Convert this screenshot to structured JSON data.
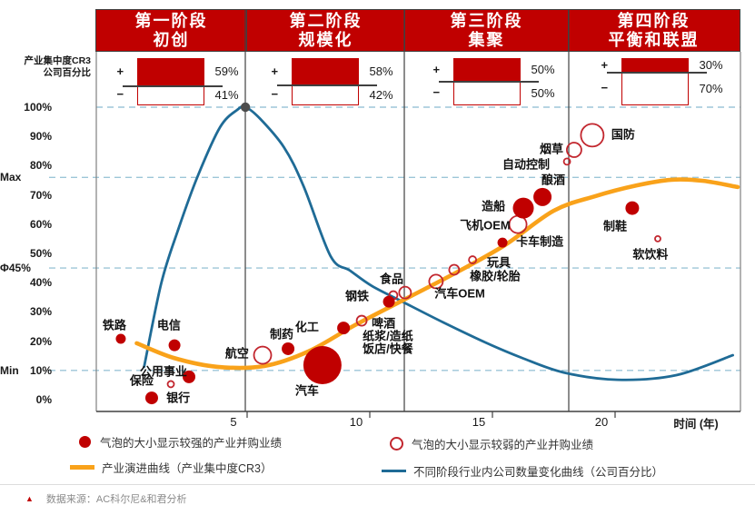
{
  "header": {
    "y_axis_title_line1": "产业集中度CR3",
    "y_axis_title_line2": "公司百分比",
    "plus_sign": "+",
    "minus_sign": "−",
    "phases": [
      {
        "stage": "第一阶段",
        "name": "初创",
        "plus_pct": 59,
        "minus_pct": 41,
        "plus_label": "59%",
        "minus_label": "41%"
      },
      {
        "stage": "第二阶段",
        "name": "规模化",
        "plus_pct": 58,
        "minus_pct": 42,
        "plus_label": "58%",
        "minus_label": "42%"
      },
      {
        "stage": "第三阶段",
        "name": "集聚",
        "plus_pct": 50,
        "minus_pct": 50,
        "plus_label": "50%",
        "minus_label": "50%"
      },
      {
        "stage": "第四阶段",
        "name": "平衡和联盟",
        "plus_pct": 30,
        "minus_pct": 70,
        "plus_label": "30%",
        "minus_label": "70%"
      }
    ]
  },
  "chart_data": {
    "type": "scatter",
    "x_axis": {
      "ticks": [
        5,
        10,
        15,
        20
      ],
      "title": "时间 (年)"
    },
    "y_axis": {
      "ticks": [
        "100%",
        "90%",
        "80%",
        "70%",
        "60%",
        "50%",
        "40%",
        "30%",
        "20%",
        "10%",
        "0%"
      ],
      "tick_pcts": [
        100,
        90,
        80,
        70,
        60,
        50,
        40,
        30,
        20,
        10,
        0
      ],
      "special_lines": [
        {
          "label": "Max",
          "pct": 76
        },
        {
          "label": "Φ45%",
          "pct": 45
        },
        {
          "label": "Min",
          "pct": 10
        }
      ]
    },
    "curves": [
      {
        "id": "company-count-curve",
        "name": "不同阶段行业内公司数量变化曲线（公司百分比）",
        "color": "#1F6B96",
        "width": 2.8,
        "points": [
          [
            0.8,
            11.2
          ],
          [
            1.5,
            39.8
          ],
          [
            2.2,
            58.4
          ],
          [
            3.0,
            76.7
          ],
          [
            3.9,
            93.2
          ],
          [
            4.6,
            99.1
          ],
          [
            4.93,
            100
          ],
          [
            5.5,
            96.3
          ],
          [
            6.5,
            86.3
          ],
          [
            7.3,
            73.0
          ],
          [
            8.4,
            49.1
          ],
          [
            9.2,
            44.1
          ],
          [
            10.1,
            38.8
          ],
          [
            11.4,
            33.2
          ],
          [
            13.0,
            26.4
          ],
          [
            14.7,
            19.6
          ],
          [
            16.2,
            14.3
          ],
          [
            17.9,
            9.3
          ],
          [
            20.1,
            6.8
          ],
          [
            22.5,
            8.4
          ],
          [
            24.8,
            15.2
          ]
        ]
      },
      {
        "id": "cr3-evolution-curve",
        "name": "产业演进曲线（产业集中度CR3）",
        "color": "#F9A21A",
        "width": 4.6,
        "points": [
          [
            0.5,
            19.3
          ],
          [
            2.0,
            14.3
          ],
          [
            3.8,
            11.2
          ],
          [
            5.7,
            11.5
          ],
          [
            7.5,
            16.5
          ],
          [
            9.4,
            25.5
          ],
          [
            11.4,
            34.2
          ],
          [
            13.4,
            42.9
          ],
          [
            15.5,
            52.8
          ],
          [
            17.5,
            64.6
          ],
          [
            19.2,
            69.6
          ],
          [
            20.9,
            73.3
          ],
          [
            22.3,
            75.2
          ],
          [
            23.6,
            74.8
          ],
          [
            25.0,
            72.7
          ]
        ]
      }
    ],
    "peak_dot": {
      "t": 4.93,
      "c": 100,
      "r": 5.2,
      "color": "#4D4D4D"
    },
    "bubbles": [
      {
        "label": "铁路",
        "t": -0.15,
        "c": 20.8,
        "r": 5.5,
        "filled": true,
        "lt": -0.41,
        "lc": 25.8
      },
      {
        "label": "电信",
        "t": 2.04,
        "c": 18.6,
        "r": 6.5,
        "filled": true,
        "lt": 1.81,
        "lc": 25.8
      },
      {
        "label": "公用事业",
        "t": 2.63,
        "c": 7.8,
        "r": 7,
        "filled": true,
        "lt": 1.59,
        "lc": 9.9
      },
      {
        "label": "保险",
        "t": 1.89,
        "c": 5.3,
        "r": 3.5,
        "filled": false,
        "lt": 0.7,
        "lc": 6.8
      },
      {
        "label": "银行",
        "t": 1.11,
        "c": 0.6,
        "r": 7,
        "filled": true,
        "lt": 2.19,
        "lc": 0.9
      },
      {
        "label": "航空",
        "t": 5.63,
        "c": 15.2,
        "r": 9.5,
        "filled": false,
        "lt": 4.59,
        "lc": 16.1
      },
      {
        "label": "制药",
        "t": 6.67,
        "c": 17.4,
        "r": 7,
        "filled": true,
        "lt": 6.41,
        "lc": 22.7
      },
      {
        "label": "化工",
        "t": 8.93,
        "c": 24.5,
        "r": 7,
        "filled": true,
        "lt": 7.44,
        "lc": 25.2
      },
      {
        "label": "汽车",
        "t": 8.07,
        "c": 11.8,
        "r": 21,
        "filled": true,
        "lt": 7.44,
        "lc": 3.4
      },
      {
        "label": "钢铁",
        "t": 10.78,
        "c": 33.5,
        "r": 6.5,
        "filled": true,
        "lt": 9.48,
        "lc": 35.7
      },
      {
        "label": "啤酒",
        "t": 9.67,
        "c": 27.0,
        "r": 5.5,
        "filled": false,
        "lt": 10.56,
        "lc": 26.4
      },
      {
        "label": "",
        "t": 10.96,
        "c": 35.7,
        "r": 4.5,
        "filled": false
      },
      {
        "label": "食品",
        "t": 11.44,
        "c": 36.6,
        "r": 6.5,
        "filled": false,
        "lt": 10.89,
        "lc": 41.6
      },
      {
        "label": "汽车OEM",
        "t": 12.7,
        "c": 40.4,
        "r": 7.5,
        "filled": false,
        "lt": 13.67,
        "lc": 36.6
      },
      {
        "label": "橡胶/轮胎",
        "t": 13.44,
        "c": 44.4,
        "r": 5.5,
        "filled": false,
        "lt": 15.11,
        "lc": 42.5
      },
      {
        "label": "玩具",
        "t": 14.19,
        "c": 47.8,
        "r": 4,
        "filled": false,
        "lt": 15.26,
        "lc": 47.2
      },
      {
        "label": "卡车制造",
        "t": 15.41,
        "c": 53.7,
        "r": 5.5,
        "filled": true,
        "lt": 16.93,
        "lc": 54.3
      },
      {
        "label": "飞机OEM",
        "t": 16.04,
        "c": 59.9,
        "r": 9.5,
        "filled": false,
        "lt": 14.7,
        "lc": 59.9
      },
      {
        "label": "造船",
        "t": 16.26,
        "c": 65.5,
        "r": 11.5,
        "filled": true,
        "lt": 15.04,
        "lc": 66.5
      },
      {
        "label": "酿酒",
        "t": 17.04,
        "c": 69.3,
        "r": 10,
        "filled": true,
        "lt": 17.48,
        "lc": 75.5
      },
      {
        "label": "自动控制",
        "t": 18.04,
        "c": 81.4,
        "r": 3.5,
        "filled": false,
        "lt": 16.37,
        "lc": 80.7
      },
      {
        "label": "烟草",
        "t": 18.33,
        "c": 85.4,
        "r": 8,
        "filled": false,
        "lt": 17.41,
        "lc": 86.0
      },
      {
        "label": "国防",
        "t": 19.07,
        "c": 90.4,
        "r": 12.5,
        "filled": false,
        "lt": 20.33,
        "lc": 91.0
      },
      {
        "label": "制鞋",
        "t": 20.7,
        "c": 65.5,
        "r": 7.5,
        "filled": true,
        "lt": 20.0,
        "lc": 59.6
      },
      {
        "label": "软饮料",
        "t": 21.74,
        "c": 55.0,
        "r": 3,
        "filled": false,
        "lt": 21.44,
        "lc": 50.0
      }
    ],
    "annotations": [
      {
        "text": "纸浆/造纸",
        "t": 10.74,
        "c": 22.0
      },
      {
        "text": "饭店/快餐",
        "t": 10.74,
        "c": 17.7
      }
    ]
  },
  "legend": {
    "items": [
      {
        "swatch": "filled-circle",
        "text": "气泡的大小显示较强的产业并购业绩"
      },
      {
        "swatch": "open-circle",
        "text": "气泡的大小显示较弱的产业并购业绩"
      },
      {
        "swatch": "orange-line",
        "text": "产业演进曲线（产业集中度CR3）"
      },
      {
        "swatch": "blue-line",
        "text": "不同阶段行业内公司数量变化曲线（公司百分比）"
      }
    ]
  },
  "footer": {
    "marker": "▲",
    "source_text": "数据来源：AC科尔尼&和君分析"
  },
  "colors": {
    "primary_red": "#C00000",
    "open_bubble_red": "#C2262E",
    "orange": "#F9A21A",
    "blue": "#1F6B96",
    "dashed_blue": "#9DC6D8",
    "axis_gray": "#808080",
    "divider_gray": "#404040"
  }
}
